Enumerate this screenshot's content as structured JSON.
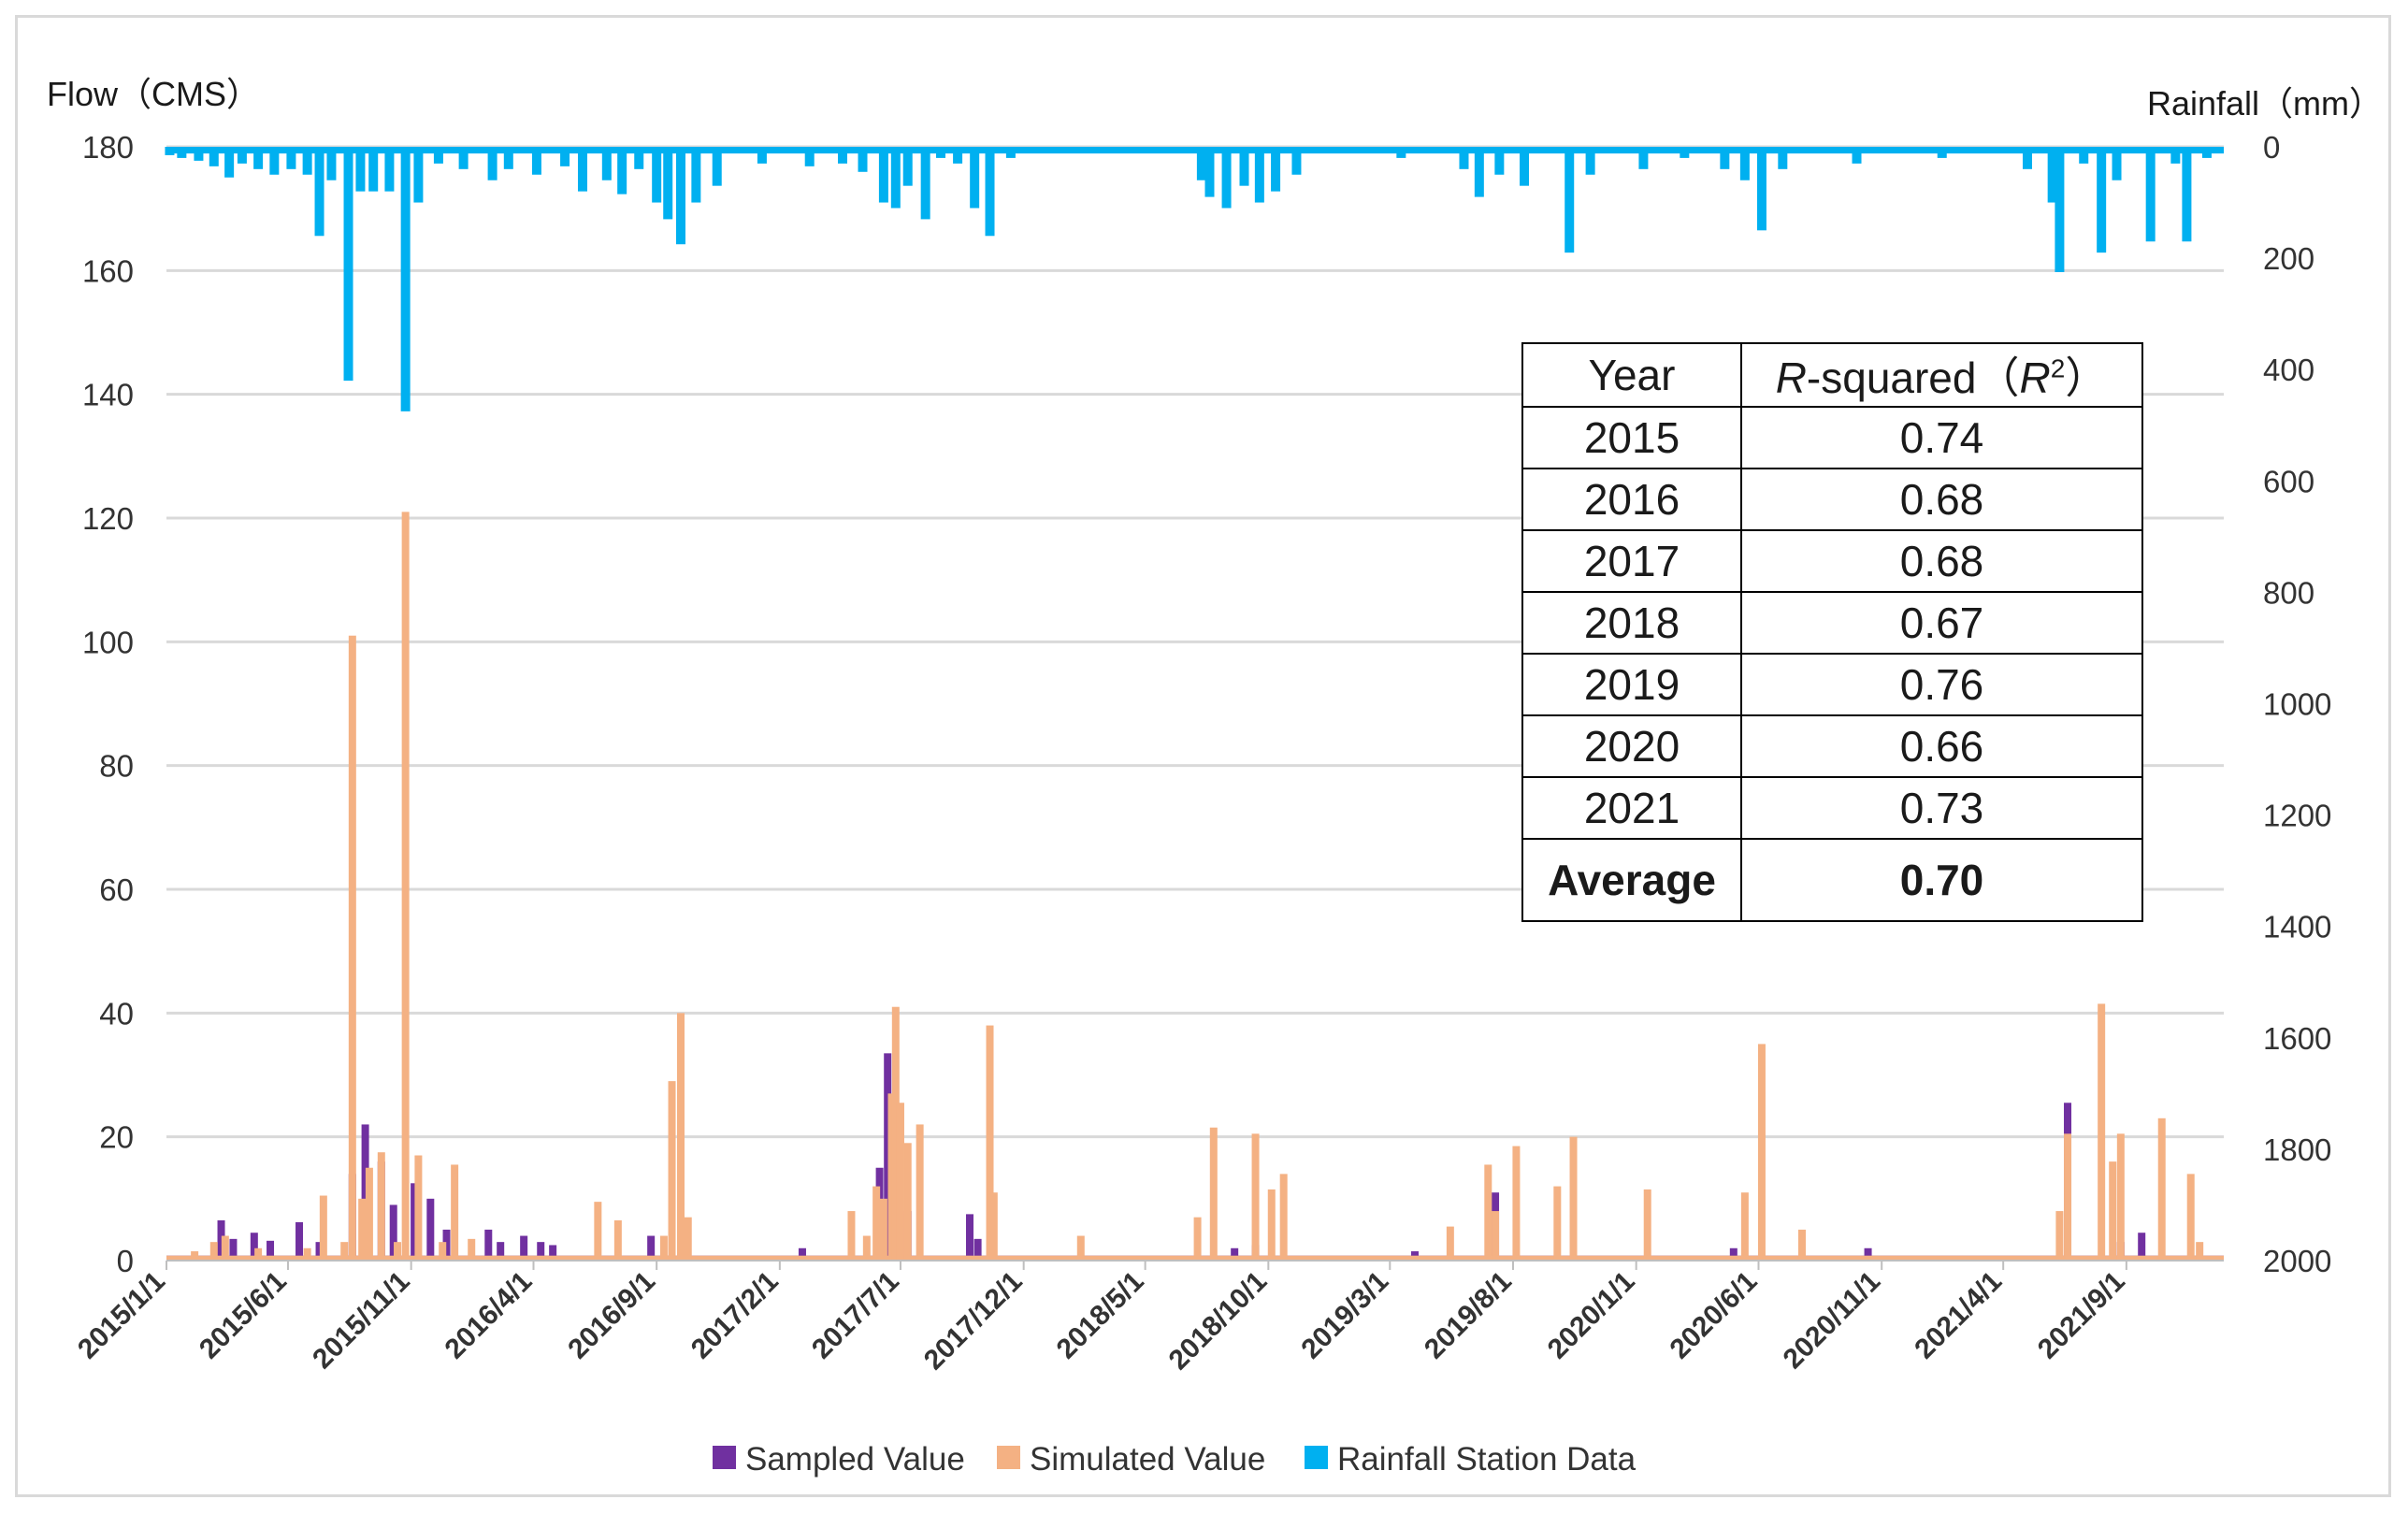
{
  "chart_data": {
    "type": "bar",
    "left_axis_title": "Flow（CMS）",
    "right_axis_title": "Rainfall（mm）",
    "left_ylim": [
      0,
      180
    ],
    "left_ticks": [
      "0",
      "20",
      "40",
      "60",
      "80",
      "100",
      "120",
      "140",
      "160",
      "180"
    ],
    "right_ylim": [
      0,
      2000
    ],
    "right_axis_inverted": true,
    "right_ticks": [
      "0",
      "200",
      "400",
      "600",
      "800",
      "1000",
      "1200",
      "1400",
      "1600",
      "1800",
      "2000"
    ],
    "x_tick_labels": [
      "2015/1/1",
      "2015/6/1",
      "2015/11/1",
      "2016/4/1",
      "2016/9/1",
      "2017/2/1",
      "2017/7/1",
      "2017/12/1",
      "2018/5/1",
      "2018/10/1",
      "2019/3/1",
      "2019/8/1",
      "2020/1/1",
      "2020/6/1",
      "2020/11/1",
      "2021/4/1",
      "2021/9/1"
    ],
    "x_range": [
      "2015/1/1",
      "2021/12/31"
    ],
    "grid": true,
    "legend_position": "bottom",
    "series": [
      {
        "name": "Sampled Value",
        "axis": "left",
        "color": "#7030a0",
        "baseline": 0.8,
        "points": [
          [
            "2015/3/10",
            6.5
          ],
          [
            "2015/3/25",
            3.5
          ],
          [
            "2015/4/20",
            4.5
          ],
          [
            "2015/5/10",
            3.2
          ],
          [
            "2015/6/15",
            6.2
          ],
          [
            "2015/7/10",
            3.0
          ],
          [
            "2015/8/20",
            14.0
          ],
          [
            "2015/9/5",
            22.0
          ],
          [
            "2015/9/25",
            16.0
          ],
          [
            "2015/10/10",
            9.0
          ],
          [
            "2015/11/5",
            12.5
          ],
          [
            "2015/11/25",
            10.0
          ],
          [
            "2015/12/15",
            5.0
          ],
          [
            "2016/2/5",
            5.0
          ],
          [
            "2016/2/20",
            3.0
          ],
          [
            "2016/3/20",
            4.0
          ],
          [
            "2016/4/10",
            3.0
          ],
          [
            "2016/4/25",
            2.5
          ],
          [
            "2016/8/25",
            4.0
          ],
          [
            "2016/10/5",
            5.0
          ],
          [
            "2017/3/1",
            2.0
          ],
          [
            "2017/6/5",
            15.0
          ],
          [
            "2017/6/15",
            33.5
          ],
          [
            "2017/6/25",
            20.0
          ],
          [
            "2017/7/10",
            8.0
          ],
          [
            "2017/9/25",
            7.5
          ],
          [
            "2017/10/5",
            3.5
          ],
          [
            "2018/8/20",
            2.0
          ],
          [
            "2018/9/15",
            2.5
          ],
          [
            "2019/4/1",
            1.5
          ],
          [
            "2019/7/10",
            11.0
          ],
          [
            "2020/5/1",
            2.0
          ],
          [
            "2020/10/15",
            2.0
          ],
          [
            "2021/6/20",
            25.5
          ],
          [
            "2021/8/25",
            3.0
          ],
          [
            "2021/9/20",
            4.5
          ]
        ]
      },
      {
        "name": "Simulated Value",
        "axis": "left",
        "color": "#f4b183",
        "baseline": 0.8,
        "points": [
          [
            "2015/2/5",
            1.5
          ],
          [
            "2015/3/1",
            3.0
          ],
          [
            "2015/3/15",
            4.0
          ],
          [
            "2015/4/25",
            2.0
          ],
          [
            "2015/6/25",
            2.0
          ],
          [
            "2015/7/15",
            10.5
          ],
          [
            "2015/8/10",
            3.0
          ],
          [
            "2015/8/20",
            101.0
          ],
          [
            "2015/9/1",
            10.0
          ],
          [
            "2015/9/10",
            15.0
          ],
          [
            "2015/9/25",
            17.5
          ],
          [
            "2015/10/15",
            3.0
          ],
          [
            "2015/10/25",
            121.0
          ],
          [
            "2015/11/10",
            17.0
          ],
          [
            "2015/12/10",
            3.0
          ],
          [
            "2015/12/25",
            15.5
          ],
          [
            "2016/1/15",
            3.5
          ],
          [
            "2016/6/20",
            9.5
          ],
          [
            "2016/7/15",
            6.5
          ],
          [
            "2016/9/10",
            4.0
          ],
          [
            "2016/9/20",
            29.0
          ],
          [
            "2016/10/1",
            40.0
          ],
          [
            "2016/10/10",
            7.0
          ],
          [
            "2017/5/1",
            8.0
          ],
          [
            "2017/5/20",
            4.0
          ],
          [
            "2017/6/1",
            12.0
          ],
          [
            "2017/6/10",
            10.0
          ],
          [
            "2017/6/20",
            27.0
          ],
          [
            "2017/6/25",
            41.0
          ],
          [
            "2017/7/1",
            25.5
          ],
          [
            "2017/7/10",
            19.0
          ],
          [
            "2017/7/25",
            22.0
          ],
          [
            "2017/10/20",
            38.0
          ],
          [
            "2017/10/25",
            11.0
          ],
          [
            "2018/2/10",
            4.0
          ],
          [
            "2018/7/5",
            7.0
          ],
          [
            "2018/7/25",
            21.5
          ],
          [
            "2018/9/15",
            20.5
          ],
          [
            "2018/10/5",
            11.5
          ],
          [
            "2018/10/20",
            14.0
          ],
          [
            "2019/5/15",
            5.5
          ],
          [
            "2019/7/1",
            15.5
          ],
          [
            "2019/7/10",
            8.0
          ],
          [
            "2019/8/5",
            18.5
          ],
          [
            "2019/9/25",
            12.0
          ],
          [
            "2019/10/15",
            20.0
          ],
          [
            "2020/1/15",
            11.5
          ],
          [
            "2020/5/15",
            11.0
          ],
          [
            "2020/6/5",
            35.0
          ],
          [
            "2020/7/25",
            5.0
          ],
          [
            "2021/6/10",
            8.0
          ],
          [
            "2021/6/20",
            20.5
          ],
          [
            "2021/8/1",
            41.5
          ],
          [
            "2021/8/15",
            16.0
          ],
          [
            "2021/8/25",
            20.5
          ],
          [
            "2021/10/15",
            23.0
          ],
          [
            "2021/11/20",
            14.0
          ],
          [
            "2021/12/1",
            3.0
          ]
        ]
      },
      {
        "name": "Rainfall Station Data",
        "axis": "right",
        "color": "#00b0f0",
        "points": [
          [
            "2015/1/5",
            15
          ],
          [
            "2015/1/20",
            20
          ],
          [
            "2015/2/10",
            25
          ],
          [
            "2015/3/1",
            35
          ],
          [
            "2015/3/20",
            55
          ],
          [
            "2015/4/5",
            30
          ],
          [
            "2015/4/25",
            40
          ],
          [
            "2015/5/15",
            50
          ],
          [
            "2015/6/5",
            40
          ],
          [
            "2015/6/25",
            50
          ],
          [
            "2015/7/10",
            160
          ],
          [
            "2015/7/25",
            60
          ],
          [
            "2015/8/15",
            420
          ],
          [
            "2015/8/30",
            80
          ],
          [
            "2015/9/15",
            80
          ],
          [
            "2015/10/5",
            80
          ],
          [
            "2015/10/25",
            475
          ],
          [
            "2015/11/10",
            100
          ],
          [
            "2015/12/5",
            30
          ],
          [
            "2016/1/5",
            40
          ],
          [
            "2016/2/10",
            60
          ],
          [
            "2016/3/1",
            40
          ],
          [
            "2016/4/5",
            50
          ],
          [
            "2016/5/10",
            35
          ],
          [
            "2016/6/1",
            80
          ],
          [
            "2016/7/1",
            60
          ],
          [
            "2016/7/20",
            85
          ],
          [
            "2016/8/10",
            40
          ],
          [
            "2016/9/1",
            100
          ],
          [
            "2016/9/15",
            130
          ],
          [
            "2016/10/1",
            175
          ],
          [
            "2016/10/20",
            100
          ],
          [
            "2016/11/15",
            70
          ],
          [
            "2017/1/10",
            30
          ],
          [
            "2017/3/10",
            35
          ],
          [
            "2017/4/20",
            30
          ],
          [
            "2017/5/15",
            45
          ],
          [
            "2017/6/10",
            100
          ],
          [
            "2017/6/25",
            110
          ],
          [
            "2017/7/10",
            70
          ],
          [
            "2017/8/1",
            130
          ],
          [
            "2017/8/20",
            20
          ],
          [
            "2017/9/10",
            30
          ],
          [
            "2017/10/1",
            110
          ],
          [
            "2017/10/20",
            160
          ],
          [
            "2017/11/15",
            20
          ],
          [
            "2018/7/10",
            60
          ],
          [
            "2018/7/20",
            90
          ],
          [
            "2018/8/10",
            110
          ],
          [
            "2018/9/1",
            70
          ],
          [
            "2018/9/20",
            100
          ],
          [
            "2018/10/10",
            80
          ],
          [
            "2018/11/5",
            50
          ],
          [
            "2019/3/15",
            20
          ],
          [
            "2019/6/1",
            40
          ],
          [
            "2019/6/20",
            90
          ],
          [
            "2019/7/15",
            50
          ],
          [
            "2019/8/15",
            70
          ],
          [
            "2019/10/10",
            190
          ],
          [
            "2019/11/5",
            50
          ],
          [
            "2020/1/10",
            40
          ],
          [
            "2020/3/1",
            20
          ],
          [
            "2020/4/20",
            40
          ],
          [
            "2020/5/15",
            60
          ],
          [
            "2020/6/5",
            150
          ],
          [
            "2020/7/1",
            40
          ],
          [
            "2020/10/1",
            30
          ],
          [
            "2021/1/15",
            20
          ],
          [
            "2021/5/1",
            40
          ],
          [
            "2021/6/1",
            100
          ],
          [
            "2021/6/10",
            225
          ],
          [
            "2021/7/10",
            30
          ],
          [
            "2021/8/1",
            190
          ],
          [
            "2021/8/20",
            60
          ],
          [
            "2021/10/1",
            170
          ],
          [
            "2021/11/1",
            30
          ],
          [
            "2021/11/15",
            170
          ],
          [
            "2021/12/10",
            20
          ]
        ]
      }
    ],
    "legend": [
      "Sampled Value",
      "Simulated Value",
      "Rainfall Station Data"
    ]
  },
  "r2_table": {
    "header_year": "Year",
    "header_r": "R",
    "header_mid": "-squared（",
    "header_r2": "R",
    "header_sup": "2",
    "header_close": "）",
    "rows": [
      {
        "year": "2015",
        "value": "0.74"
      },
      {
        "year": "2016",
        "value": "0.68"
      },
      {
        "year": "2017",
        "value": "0.68"
      },
      {
        "year": "2018",
        "value": "0.67"
      },
      {
        "year": "2019",
        "value": "0.76"
      },
      {
        "year": "2020",
        "value": "0.66"
      },
      {
        "year": "2021",
        "value": "0.73"
      }
    ],
    "average_label": "Average",
    "average_value": "0.70"
  }
}
